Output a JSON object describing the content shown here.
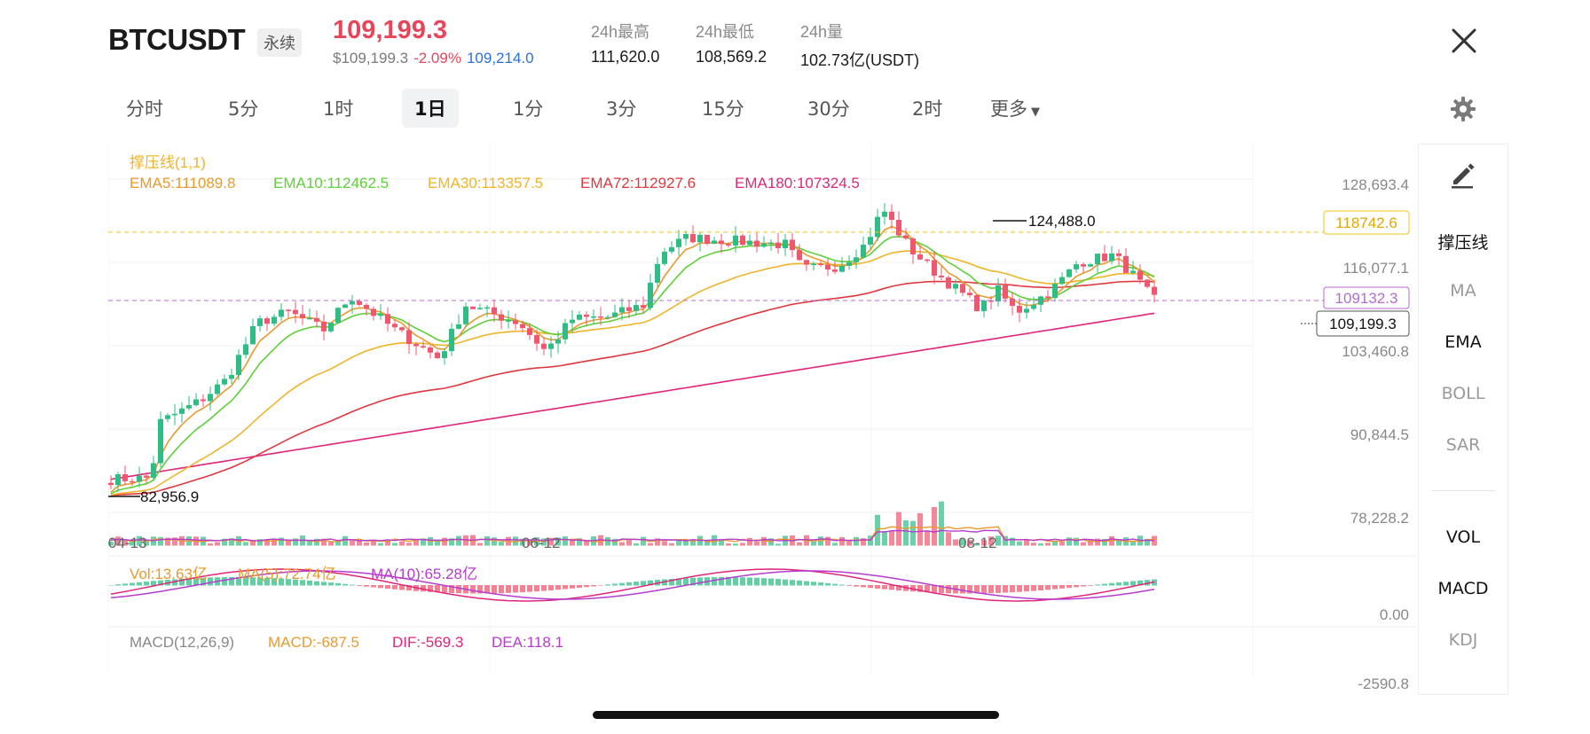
{
  "header": {
    "symbol": "BTCUSDT",
    "contract_type": "永续",
    "last_price": "109,199.3",
    "usd_price": "$109,199.3",
    "change_pct": "-2.09%",
    "mark_price": "109,214.0",
    "stats": [
      {
        "label": "24h最高",
        "value": "111,620.0"
      },
      {
        "label": "24h最低",
        "value": "108,569.2"
      },
      {
        "label": "24h量",
        "value": "102.73亿(USDT)"
      }
    ]
  },
  "tabs": [
    {
      "label": "分时",
      "active": false
    },
    {
      "label": "5分",
      "active": false
    },
    {
      "label": "1时",
      "active": false
    },
    {
      "label": "1日",
      "active": true
    },
    {
      "label": "1分",
      "active": false
    },
    {
      "label": "3分",
      "active": false
    },
    {
      "label": "15分",
      "active": false
    },
    {
      "label": "30分",
      "active": false
    },
    {
      "label": "2时",
      "active": false
    },
    {
      "label": "更多",
      "active": false
    }
  ],
  "icons": {
    "close": "close-icon",
    "settings": "gear-icon",
    "draw": "pencil-icon",
    "more": "caret-down-icon"
  },
  "sidebar": {
    "main_indicators": [
      "撑压线",
      "MA",
      "EMA",
      "BOLL",
      "SAR"
    ],
    "main_active": [
      "撑压线",
      "EMA"
    ],
    "sub_indicators": [
      "VOL",
      "MACD",
      "KDJ"
    ],
    "sub_active": [
      "VOL",
      "MACD"
    ]
  },
  "colors": {
    "up": "#2ebd85",
    "down": "#f0566e",
    "price": "#e8455b",
    "ema5": "#e99a2e",
    "ema10": "#5fcf3a",
    "ema30": "#f0b429",
    "ema72": "#e0383e",
    "ema180": "#e0267a",
    "resistance": "#f0c419",
    "support": "#b36bd6"
  },
  "chart_data": {
    "type": "candlestick",
    "indicator_title": "撑压线(1,1)",
    "ema_legend": [
      {
        "name": "EMA5",
        "value": "111089.8",
        "color": "#e99a2e"
      },
      {
        "name": "EMA10",
        "value": "112462.5",
        "color": "#5fcf3a"
      },
      {
        "name": "EMA30",
        "value": "113357.5",
        "color": "#f0b429"
      },
      {
        "name": "EMA72",
        "value": "112927.6",
        "color": "#e0383e"
      },
      {
        "name": "EMA180",
        "value": "107324.5",
        "color": "#e0267a"
      }
    ],
    "y_ticks": [
      "128,693.4",
      "116,077.1",
      "103,460.8",
      "90,844.5",
      "78,228.2"
    ],
    "ylim": [
      78228.2,
      128693.4
    ],
    "x_ticks": [
      "04-13",
      "06-12",
      "08-12"
    ],
    "high_label": "124,488.0",
    "low_label": "82,956.9",
    "resistance_label": "118742.6",
    "support_label": "109132.3",
    "last_label": "109,199.3",
    "volume_legend": [
      "Vol:13.63亿",
      "MA(5):72.74亿",
      "MA(10):65.28亿"
    ],
    "volume_tick": "0.00",
    "macd_legend": [
      "MACD(12,26,9)",
      "MACD:-687.5",
      "DIF:-569.3",
      "DEA:118.1"
    ],
    "macd_tick": "-2590.8"
  }
}
